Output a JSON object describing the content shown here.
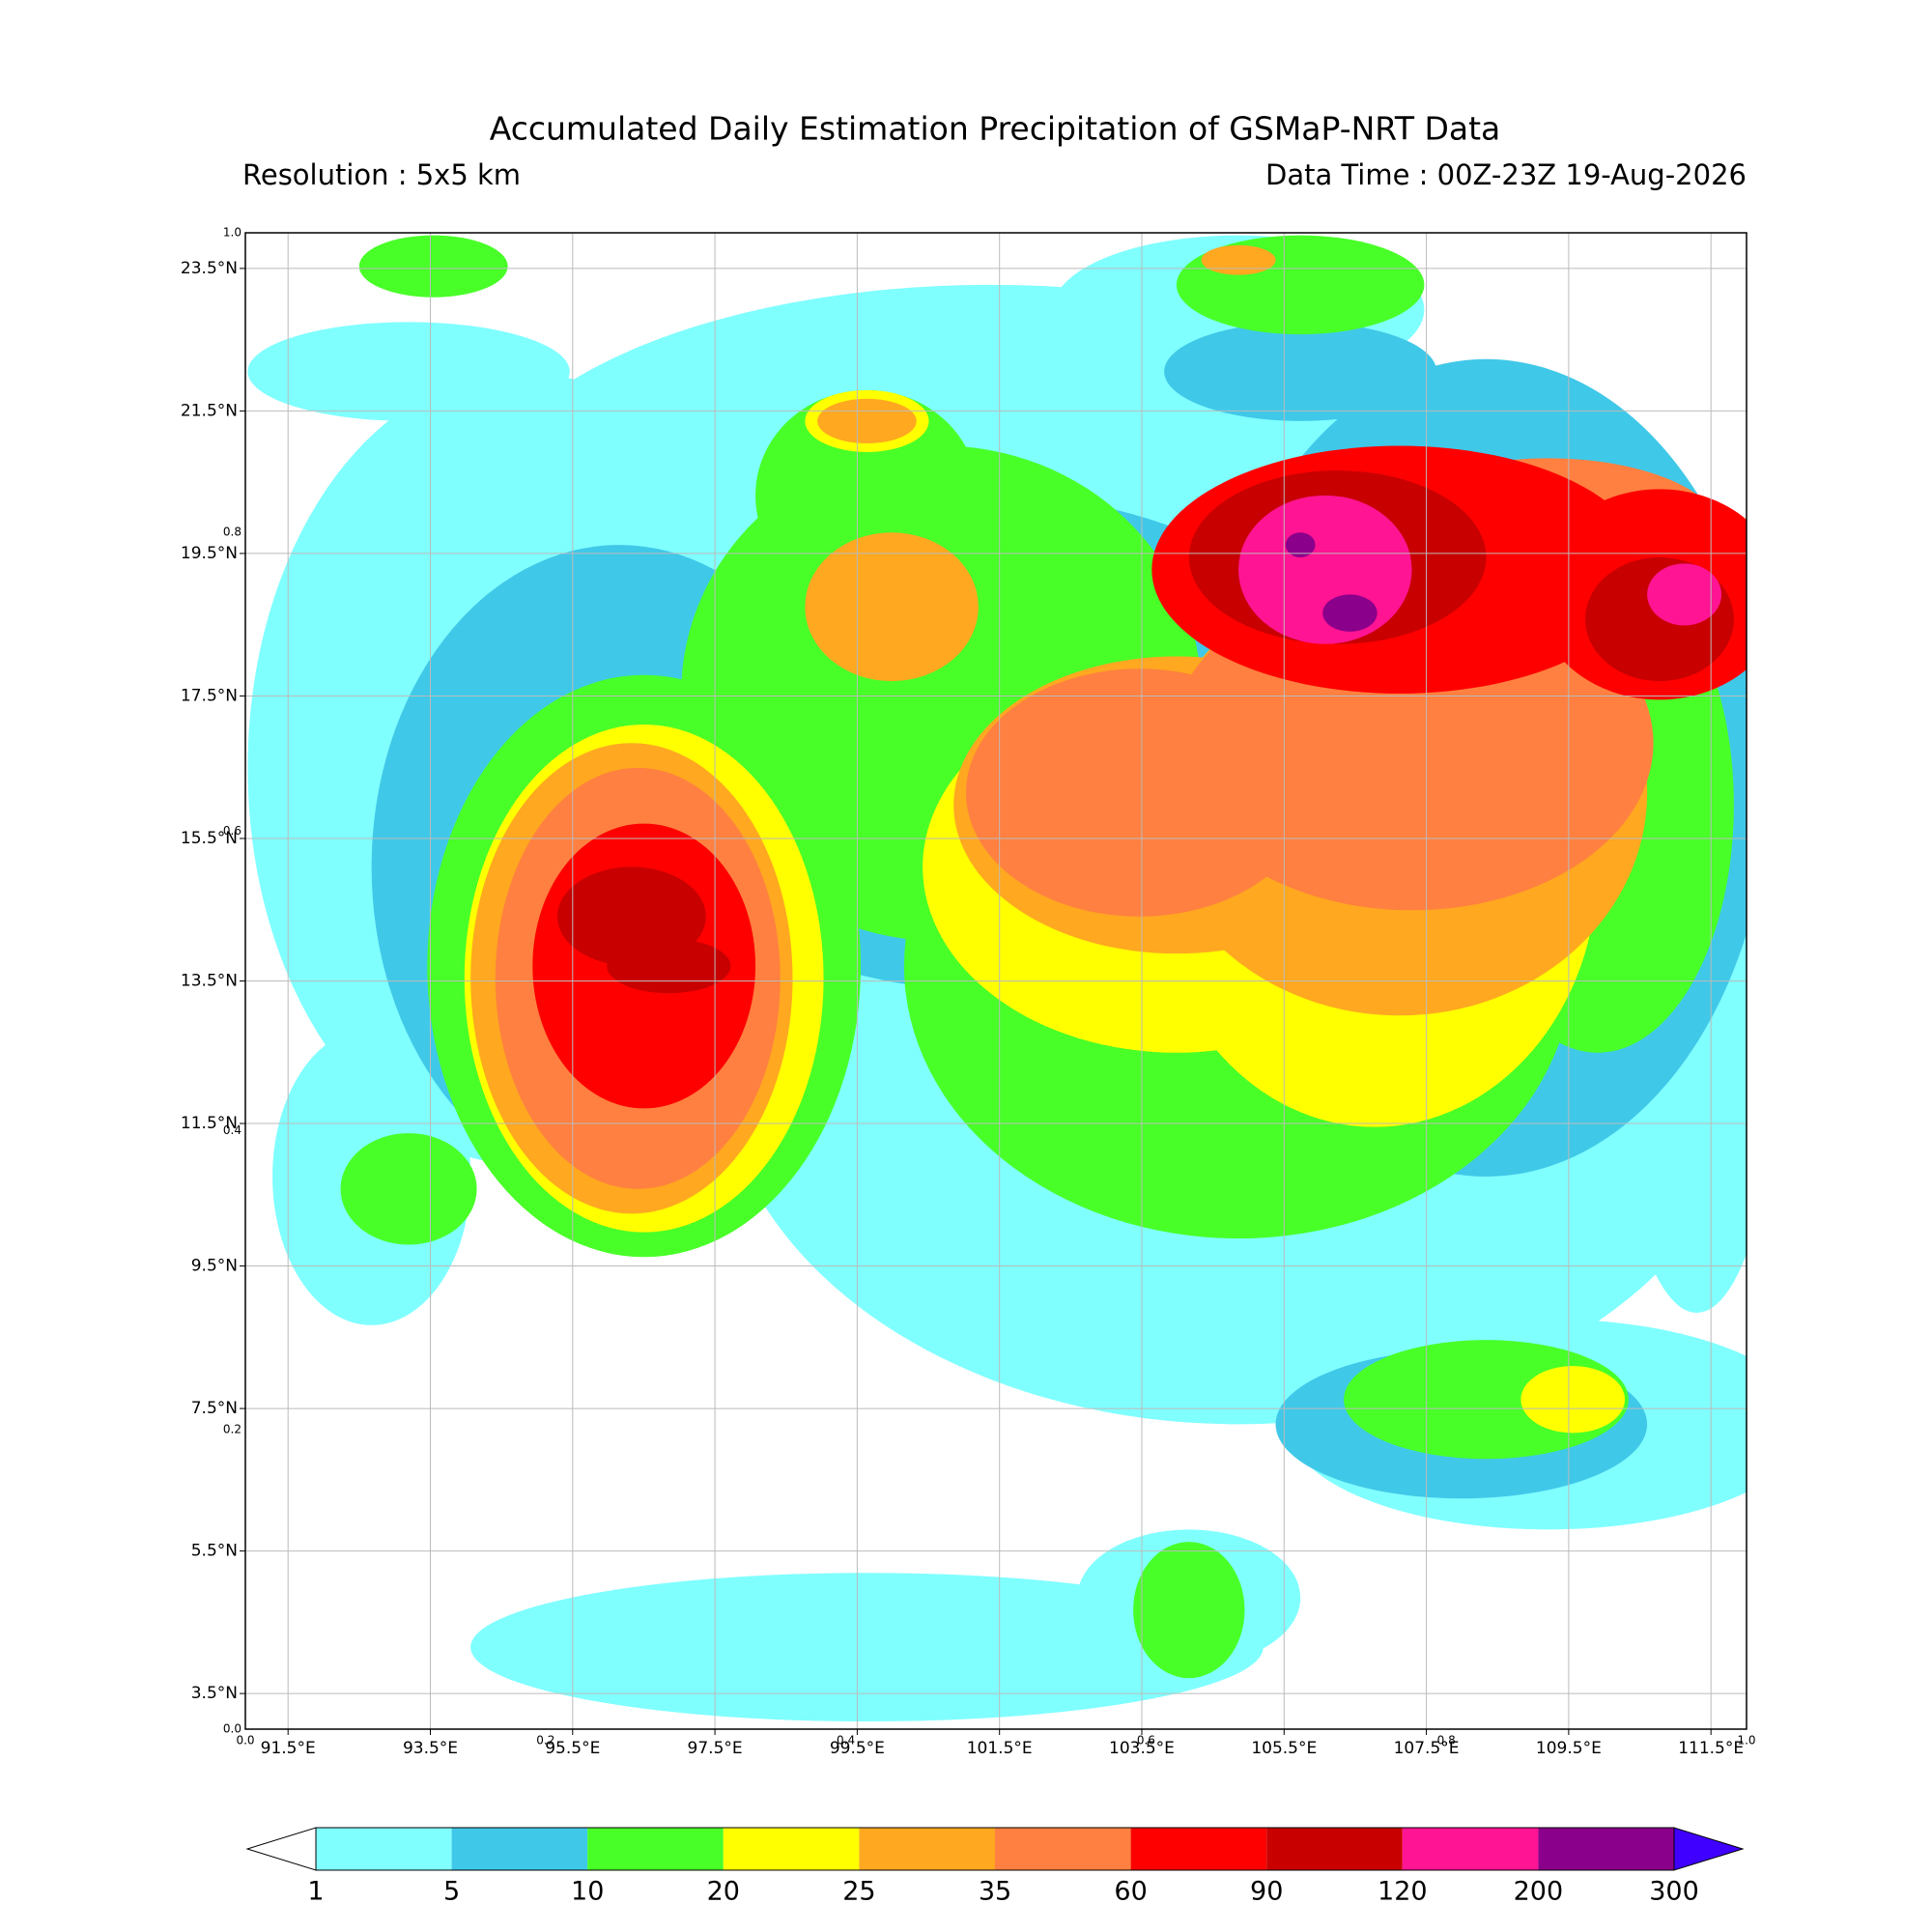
{
  "map": {
    "title": "Accumulated Daily Estimation Precipitation of GSMaP-NRT Data",
    "resolution": "Resolution : 5x5 km",
    "data_time": "Data Time : 00Z-23Z 19-Aug-2026",
    "xlim": [
      90.9,
      112.0
    ],
    "ylim": [
      3.0,
      24.0
    ],
    "xticks": [
      {
        "value": 91.5,
        "label": "91.5°E"
      },
      {
        "value": 93.5,
        "label": "93.5°E"
      },
      {
        "value": 95.5,
        "label": "95.5°E"
      },
      {
        "value": 97.5,
        "label": "97.5°E"
      },
      {
        "value": 99.5,
        "label": "99.5°E"
      },
      {
        "value": 101.5,
        "label": "101.5°E"
      },
      {
        "value": 103.5,
        "label": "103.5°E"
      },
      {
        "value": 105.5,
        "label": "105.5°E"
      },
      {
        "value": 107.5,
        "label": "107.5°E"
      },
      {
        "value": 109.5,
        "label": "109.5°E"
      },
      {
        "value": 111.5,
        "label": "111.5°E"
      }
    ],
    "yticks": [
      {
        "value": 23.5,
        "label": "23.5°N"
      },
      {
        "value": 21.5,
        "label": "21.5°N"
      },
      {
        "value": 19.5,
        "label": "19.5°N"
      },
      {
        "value": 17.5,
        "label": "17.5°N"
      },
      {
        "value": 15.5,
        "label": "15.5°N"
      },
      {
        "value": 13.5,
        "label": "13.5°N"
      },
      {
        "value": 11.5,
        "label": "11.5°N"
      },
      {
        "value": 9.5,
        "label": "9.5°N"
      },
      {
        "value": 7.5,
        "label": "7.5°N"
      },
      {
        "value": 5.5,
        "label": "5.5°N"
      },
      {
        "value": 3.5,
        "label": "3.5°N"
      }
    ],
    "overlay_ticks": [
      {
        "value": 0,
        "label": "0.0"
      },
      0.2,
      0.4,
      0.6,
      0.8,
      {
        "value": 1,
        "label": "1.0"
      }
    ],
    "grid": true,
    "colorbar": {
      "levels": [
        1,
        5,
        10,
        20,
        25,
        35,
        60,
        90,
        120,
        200,
        300
      ],
      "colors": [
        "#80ffff",
        "#40c8e8",
        "#48ff28",
        "#ffff00",
        "#ffa820",
        "#ff8040",
        "#ff0000",
        "#c80000",
        "#ff1493",
        "#8b008b"
      ],
      "under_color": "#ffffff",
      "over_color": "#4000ff"
    }
  }
}
